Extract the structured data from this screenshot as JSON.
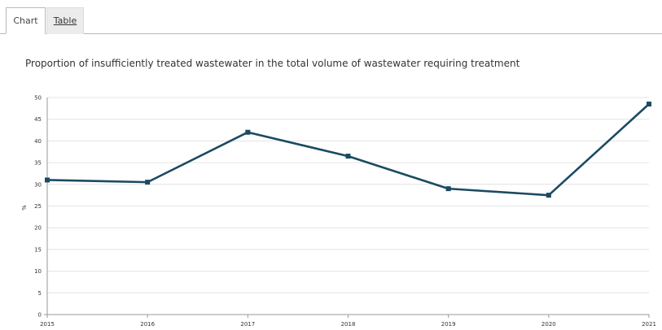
{
  "tabs": [
    {
      "label": "Chart",
      "active": true
    },
    {
      "label": "Table",
      "active": false
    }
  ],
  "chart_data": {
    "type": "line",
    "title": "Proportion of insufficiently treated wastewater in the total volume of wastewater requiring treatment",
    "xlabel": "",
    "ylabel": "%",
    "x": [
      "2015",
      "2016",
      "2017",
      "2018",
      "2019",
      "2020",
      "2021"
    ],
    "series": [
      {
        "values": [
          31,
          30.5,
          42,
          36.5,
          29,
          27.5,
          48.5
        ],
        "color": "#1b4a62"
      }
    ],
    "ylim": [
      0,
      50
    ],
    "yticks": [
      0,
      5,
      10,
      15,
      20,
      25,
      30,
      35,
      40,
      45,
      50
    ],
    "grid": true,
    "gridColor": "#e3e3e3",
    "axisColor": "#9a9a9a"
  }
}
